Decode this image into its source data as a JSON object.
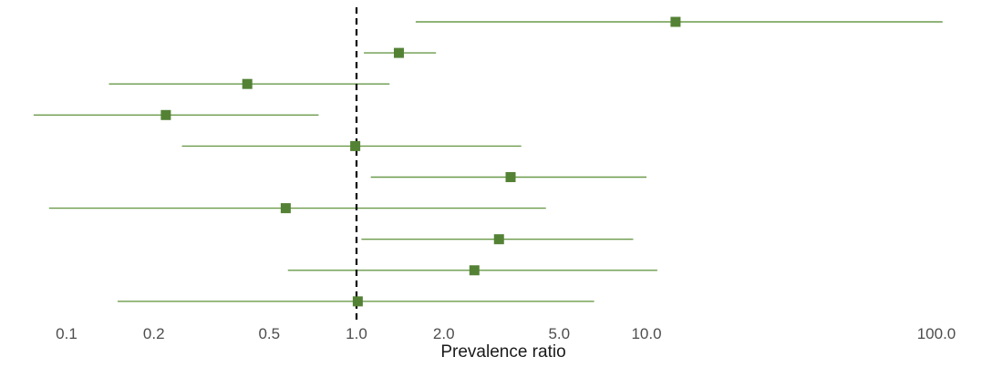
{
  "chart_data": {
    "type": "forest",
    "xlabel": "Prevalence ratio",
    "x_scale": "log10",
    "xlim": [
      0.075,
      115
    ],
    "reference_line": 1.0,
    "grid": false,
    "legend": "none",
    "colors": {
      "marker": "#548235",
      "ci_line": "#6a9a4a",
      "reference": "#000000",
      "tick_label": "#4d4d4d"
    },
    "ticks": [
      {
        "value": 0.1,
        "label": "0.1"
      },
      {
        "value": 0.2,
        "label": "0.2"
      },
      {
        "value": 0.5,
        "label": "0.5"
      },
      {
        "value": 1.0,
        "label": "1.0"
      },
      {
        "value": 2.0,
        "label": "2.0"
      },
      {
        "value": 5.0,
        "label": "5.0"
      },
      {
        "value": 10.0,
        "label": "10.0"
      },
      {
        "value": 100.0,
        "label": "100.0"
      }
    ],
    "rows": [
      {
        "estimate": 12.6,
        "lower": 1.6,
        "upper": 105
      },
      {
        "estimate": 1.4,
        "lower": 1.06,
        "upper": 1.88
      },
      {
        "estimate": 0.42,
        "lower": 0.14,
        "upper": 1.3
      },
      {
        "estimate": 0.22,
        "lower": 0.077,
        "upper": 0.74
      },
      {
        "estimate": 0.99,
        "lower": 0.25,
        "upper": 3.7
      },
      {
        "estimate": 3.4,
        "lower": 1.12,
        "upper": 10.0
      },
      {
        "estimate": 0.57,
        "lower": 0.087,
        "upper": 4.5
      },
      {
        "estimate": 3.1,
        "lower": 1.04,
        "upper": 9.0
      },
      {
        "estimate": 2.55,
        "lower": 0.58,
        "upper": 10.9
      },
      {
        "estimate": 1.01,
        "lower": 0.15,
        "upper": 6.6
      }
    ]
  }
}
